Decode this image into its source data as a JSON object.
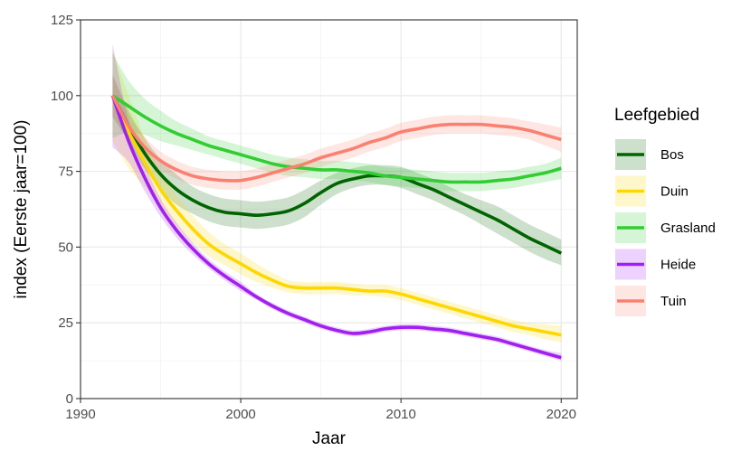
{
  "chart_data": {
    "type": "line",
    "xlabel": "Jaar",
    "ylabel": "index (Eerste jaar=100)",
    "xlim": [
      1990,
      2021
    ],
    "ylim": [
      0,
      125
    ],
    "x_ticks": [
      1990,
      2000,
      2010,
      2020
    ],
    "y_ticks": [
      0,
      25,
      50,
      75,
      100,
      125
    ],
    "grid": true,
    "legend": {
      "title": "Leefgebied",
      "position": "right"
    },
    "series": [
      {
        "name": "Bos",
        "color": "#006400",
        "x": [
          1992,
          1993,
          1994,
          1995,
          1996,
          1997,
          1998,
          1999,
          2000,
          2001,
          2002,
          2003,
          2004,
          2005,
          2006,
          2007,
          2008,
          2009,
          2010,
          2011,
          2012,
          2013,
          2014,
          2015,
          2016,
          2017,
          2018,
          2019,
          2020
        ],
        "y": [
          100,
          90,
          81,
          74,
          69,
          65.5,
          63,
          61.5,
          61,
          60.5,
          61,
          62,
          64.5,
          68,
          71,
          72.5,
          73.5,
          73.5,
          73,
          71,
          69,
          66.5,
          64,
          61.5,
          59,
          56,
          53,
          50.5,
          48
        ],
        "lower": [
          93,
          85,
          76,
          69,
          64,
          61,
          58.5,
          57,
          56.5,
          56,
          56.5,
          57.5,
          60,
          64,
          67.5,
          69.5,
          70.5,
          70.5,
          69.5,
          67.5,
          65.5,
          63,
          60.5,
          57.5,
          54.5,
          51.5,
          48.5,
          46,
          44
        ],
        "upper": [
          107,
          95,
          86,
          79,
          74,
          70,
          67.5,
          66,
          65.5,
          65,
          65.5,
          66.5,
          69,
          72,
          74.5,
          76,
          77,
          77,
          76.5,
          74.5,
          72.5,
          70,
          67.5,
          65.5,
          63.5,
          60.5,
          57.5,
          55,
          52.5
        ]
      },
      {
        "name": "Duin",
        "color": "#FFD700",
        "x": [
          1992,
          1993,
          1994,
          1995,
          1996,
          1997,
          1998,
          1999,
          2000,
          2001,
          2002,
          2003,
          2004,
          2005,
          2006,
          2007,
          2008,
          2009,
          2010,
          2011,
          2012,
          2013,
          2014,
          2015,
          2016,
          2017,
          2018,
          2019,
          2020
        ],
        "y": [
          100,
          88,
          78,
          69,
          62,
          56,
          51,
          47.5,
          44.5,
          41.5,
          39,
          37,
          36.5,
          36.5,
          36.5,
          36,
          35.5,
          35.5,
          34.5,
          33,
          31.5,
          30,
          28.5,
          27,
          25.5,
          24,
          23,
          22,
          21
        ],
        "lower": [
          85,
          76,
          70,
          63,
          57,
          51.5,
          47,
          44,
          41,
          38.5,
          36.5,
          35,
          34.5,
          34.5,
          34.5,
          34,
          34,
          33.5,
          32.5,
          31,
          29.5,
          28,
          26.5,
          25,
          23.5,
          22,
          21,
          19.5,
          18.5
        ],
        "upper": [
          115,
          100,
          86,
          75,
          67,
          60.5,
          55,
          51,
          48,
          44.5,
          41.5,
          39,
          38.5,
          38.5,
          38.5,
          38,
          37.5,
          37.5,
          36.5,
          35,
          33.5,
          32,
          30.5,
          29,
          27.5,
          26,
          25,
          24.5,
          24
        ]
      },
      {
        "name": "Grasland",
        "color": "#32CD32",
        "x": [
          1992,
          1993,
          1994,
          1995,
          1996,
          1997,
          1998,
          1999,
          2000,
          2001,
          2002,
          2003,
          2004,
          2005,
          2006,
          2007,
          2008,
          2009,
          2010,
          2011,
          2012,
          2013,
          2014,
          2015,
          2016,
          2017,
          2018,
          2019,
          2020
        ],
        "y": [
          100,
          96.5,
          93,
          90,
          87.5,
          85.5,
          83.5,
          82,
          80.5,
          79,
          77.5,
          76.5,
          76,
          75.5,
          75.5,
          75,
          74.5,
          73.5,
          73,
          72.5,
          72,
          71.5,
          71.5,
          71.5,
          72,
          72.5,
          73.5,
          74.5,
          76
        ],
        "lower": [
          86,
          88,
          87,
          85,
          83.5,
          82,
          80.5,
          79,
          77.5,
          76,
          74.5,
          73.5,
          73,
          72.5,
          72.5,
          72,
          71.5,
          70.5,
          70,
          69.5,
          69,
          68.5,
          68.5,
          68.5,
          69,
          69.5,
          70.5,
          71.5,
          72.5
        ],
        "upper": [
          114,
          105,
          99,
          95,
          91.5,
          89,
          86.5,
          85,
          83.5,
          82,
          80.5,
          79.5,
          79,
          78.5,
          78.5,
          78,
          77.5,
          76.5,
          76,
          75.5,
          75,
          74.5,
          74.5,
          74.5,
          75,
          75.5,
          76.5,
          77.5,
          79.5
        ]
      },
      {
        "name": "Heide",
        "color": "#A020F0",
        "x": [
          1992,
          1993,
          1994,
          1995,
          1996,
          1997,
          1998,
          1999,
          2000,
          2001,
          2002,
          2003,
          2004,
          2005,
          2006,
          2007,
          2008,
          2009,
          2010,
          2011,
          2012,
          2013,
          2014,
          2015,
          2016,
          2017,
          2018,
          2019,
          2020
        ],
        "y": [
          100,
          85,
          73,
          63,
          55.5,
          49.5,
          44.5,
          40.5,
          37,
          33.5,
          30.5,
          28,
          26,
          24,
          22.5,
          21.5,
          22,
          23,
          23.5,
          23.5,
          23,
          22.5,
          21.5,
          20.5,
          19.5,
          18,
          16.5,
          15,
          13.5
        ],
        "lower": [
          83,
          78,
          68.5,
          60,
          53,
          47.5,
          43,
          39,
          35.5,
          32.5,
          29.5,
          27,
          25,
          23,
          21.5,
          20.5,
          21,
          22,
          22.5,
          22.5,
          22,
          21.5,
          20.5,
          19.5,
          18.5,
          17,
          15.5,
          14,
          12.5
        ],
        "upper": [
          117,
          92,
          77.5,
          66,
          58,
          51.5,
          46,
          42,
          38.5,
          34.5,
          31.5,
          29,
          27,
          25,
          23.5,
          22.5,
          23,
          24,
          24.5,
          24.5,
          24,
          23.5,
          22.5,
          21.5,
          20.5,
          19,
          17.5,
          16,
          15
        ]
      },
      {
        "name": "Tuin",
        "color": "#FA8072",
        "x": [
          1992,
          1993,
          1994,
          1995,
          1996,
          1997,
          1998,
          1999,
          2000,
          2001,
          2002,
          2003,
          2004,
          2005,
          2006,
          2007,
          2008,
          2009,
          2010,
          2011,
          2012,
          2013,
          2014,
          2015,
          2016,
          2017,
          2018,
          2019,
          2020
        ],
        "y": [
          100,
          90,
          83,
          78.5,
          75.5,
          73.5,
          72.5,
          72,
          72,
          73,
          74.5,
          76,
          77.5,
          79.5,
          81,
          82.5,
          84.5,
          86,
          88,
          89,
          90,
          90.5,
          90.5,
          90.5,
          90,
          89.5,
          88.5,
          87,
          85.5
        ],
        "lower": [
          93,
          86,
          79.5,
          75.5,
          72.5,
          70.5,
          69.5,
          69,
          69,
          70,
          71.5,
          73,
          74.5,
          76.5,
          78,
          79.5,
          81.5,
          83,
          85,
          86,
          87,
          87.5,
          87.5,
          87.5,
          87,
          86.5,
          85.5,
          83.5,
          81.5
        ],
        "upper": [
          107,
          94,
          86.5,
          81.5,
          78.5,
          76.5,
          75.5,
          75,
          75,
          76,
          77.5,
          79,
          80.5,
          82.5,
          84,
          85.5,
          87.5,
          89,
          91,
          92,
          93,
          93.5,
          93.5,
          93.5,
          93,
          92.5,
          91.5,
          90.5,
          89.5
        ]
      }
    ]
  }
}
